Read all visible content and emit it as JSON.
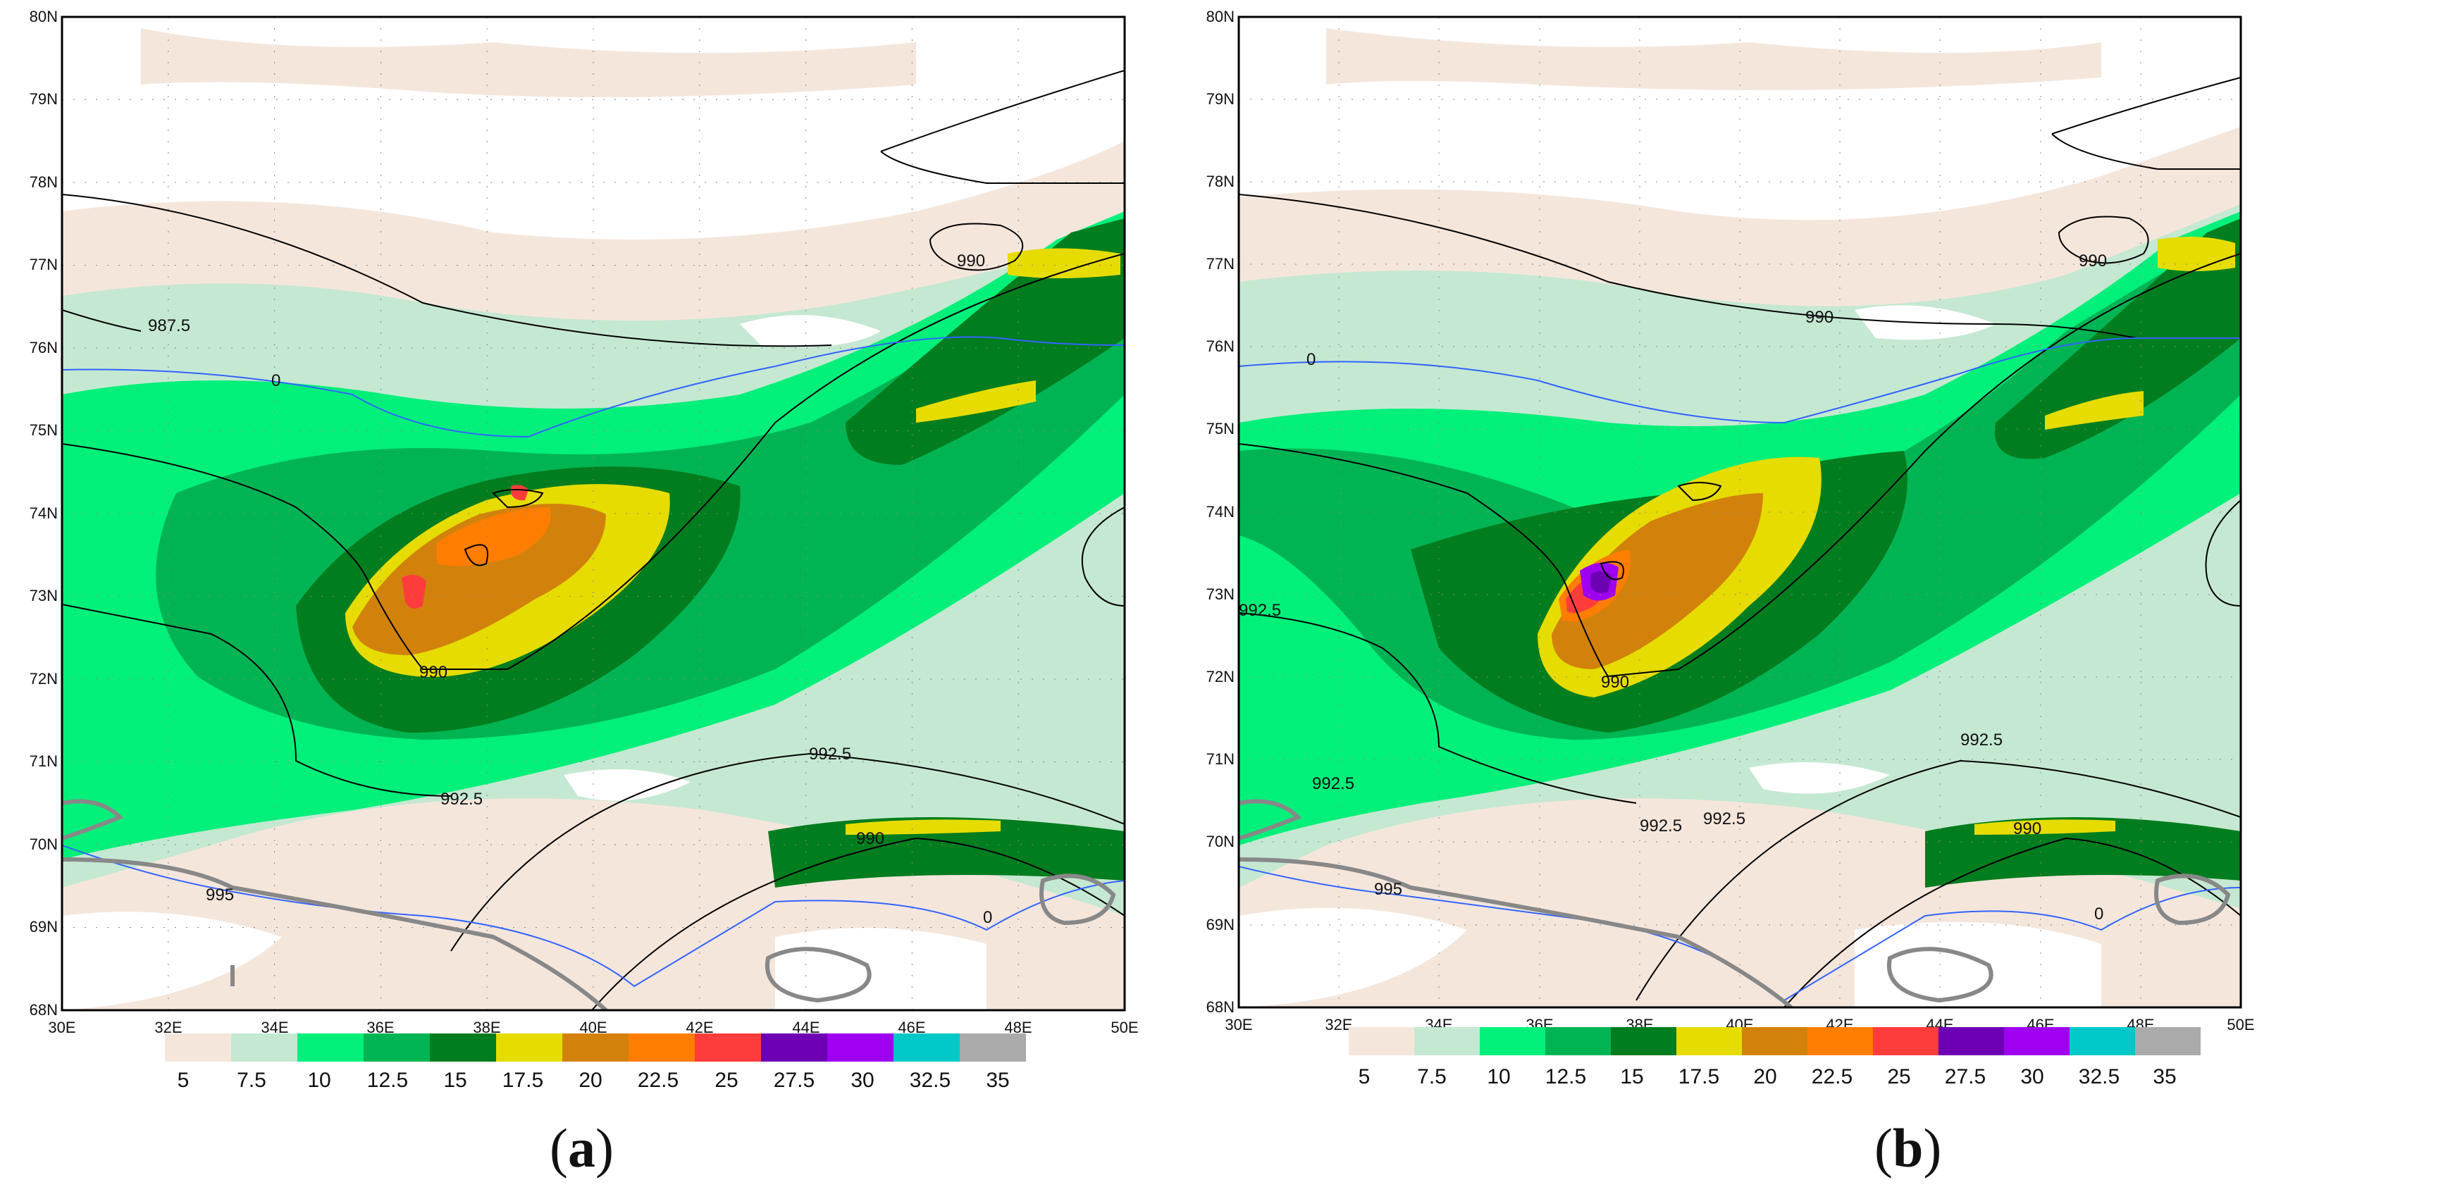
{
  "panels": [
    {
      "letter": "a",
      "lat_ticks": [
        "80N",
        "79N",
        "78N",
        "77N",
        "76N",
        "75N",
        "74N",
        "73N",
        "72N",
        "71N",
        "70N",
        "69N",
        "68N"
      ],
      "lon_ticks": [
        "30E",
        "32E",
        "34E",
        "36E",
        "38E",
        "40E",
        "42E",
        "44E",
        "46E",
        "48E",
        "50E"
      ],
      "contour_labels": [
        "987.5",
        "990",
        "990",
        "992.5",
        "992.5",
        "990",
        "995",
        "0",
        "0"
      ]
    },
    {
      "letter": "b",
      "lat_ticks": [
        "80N",
        "79N",
        "78N",
        "77N",
        "76N",
        "75N",
        "74N",
        "73N",
        "72N",
        "71N",
        "70N",
        "69N",
        "68N"
      ],
      "lon_ticks": [
        "30E",
        "32E",
        "34E",
        "36E",
        "38E",
        "40E",
        "42E",
        "44E",
        "46E",
        "48E",
        "50E"
      ],
      "contour_labels": [
        "990",
        "990",
        "992.5",
        "990",
        "992.5",
        "992.5",
        "992.5",
        "992.5",
        "990",
        "995",
        "0",
        "0"
      ]
    }
  ],
  "colorbar": {
    "labels": [
      "5",
      "7.5",
      "10",
      "12.5",
      "15",
      "17.5",
      "20",
      "22.5",
      "25",
      "27.5",
      "30",
      "32.5",
      "35"
    ],
    "colors": [
      "#f5e6dc",
      "#c5e8d2",
      "#00f07a",
      "#00b454",
      "#007d1e",
      "#e6dc00",
      "#d2820a",
      "#ff7d00",
      "#ff3c3c",
      "#6e00b4",
      "#a000f0",
      "#00c8c8",
      "#aaaaaa"
    ]
  },
  "map_colors": {
    "contour": "#000000",
    "zero_line": "#3264ff",
    "coast": "#888888"
  }
}
